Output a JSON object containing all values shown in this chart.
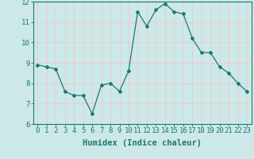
{
  "x": [
    0,
    1,
    2,
    3,
    4,
    5,
    6,
    7,
    8,
    9,
    10,
    11,
    12,
    13,
    14,
    15,
    16,
    17,
    18,
    19,
    20,
    21,
    22,
    23
  ],
  "y": [
    8.9,
    8.8,
    8.7,
    7.6,
    7.4,
    7.4,
    6.5,
    7.9,
    8.0,
    7.6,
    8.6,
    11.5,
    10.8,
    11.6,
    11.9,
    11.5,
    11.4,
    10.2,
    9.5,
    9.5,
    8.8,
    8.5,
    8.0,
    7.6
  ],
  "line_color": "#1a7a6e",
  "marker": "D",
  "marker_size": 2.0,
  "bg_color": "#cce8e8",
  "grid_color": "#f0c8c8",
  "xlabel": "Humidex (Indice chaleur)",
  "ylim": [
    6,
    12
  ],
  "xlim": [
    -0.5,
    23.5
  ],
  "yticks": [
    6,
    7,
    8,
    9,
    10,
    11,
    12
  ],
  "xticks": [
    0,
    1,
    2,
    3,
    4,
    5,
    6,
    7,
    8,
    9,
    10,
    11,
    12,
    13,
    14,
    15,
    16,
    17,
    18,
    19,
    20,
    21,
    22,
    23
  ],
  "xlabel_fontsize": 7.5,
  "tick_fontsize": 6.5,
  "tick_color": "#1a7a6e",
  "axis_color": "#1a7a6e"
}
